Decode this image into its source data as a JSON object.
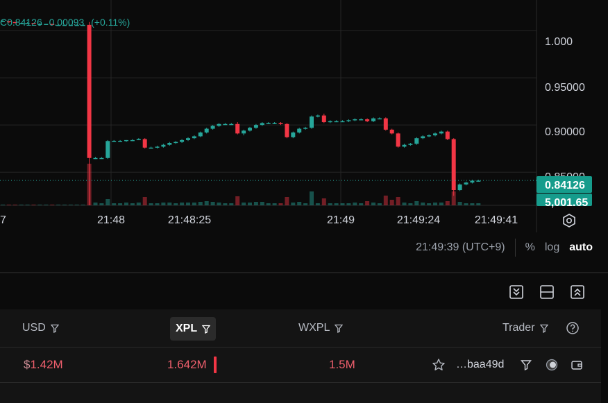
{
  "ohlc": {
    "prefix": "C",
    "close": "0.84126",
    "change": "0.00093",
    "change_pct": "(+0.11%)"
  },
  "price_axis": {
    "ticks": [
      "1.000",
      "0.95000",
      "0.90000",
      "0.85000"
    ],
    "last_price": "0.84126",
    "volume": "5,001.65"
  },
  "time_axis": {
    "ticks": [
      "7",
      "21:48",
      "21:48:25",
      "21:49",
      "21:49:24",
      "21:49:41"
    ]
  },
  "toolbar": {
    "time": "21:49:39 (UTC+9)",
    "percent": "%",
    "log": "log",
    "auto": "auto"
  },
  "colors": {
    "up": "#26a69a",
    "down": "#f23645",
    "grid": "#262626",
    "label_up": "#169c8c"
  },
  "chart_data": {
    "type": "candlestick",
    "title": "",
    "y_range": [
      0.845,
      1.025
    ],
    "last_price": 0.84126,
    "candles": [
      [
        1.01,
        1.011,
        1.009,
        1.01
      ],
      [
        1.01,
        1.01,
        1.008,
        1.009
      ],
      [
        1.009,
        1.009,
        1.008,
        1.008
      ],
      [
        1.008,
        1.008,
        1.008,
        1.008
      ],
      [
        1.008,
        1.009,
        1.007,
        1.008
      ],
      [
        1.008,
        1.008,
        1.007,
        1.007
      ],
      [
        1.007,
        1.008,
        1.007,
        1.007
      ],
      [
        1.007,
        1.007,
        1.007,
        1.007
      ],
      [
        1.007,
        1.007,
        1.006,
        1.006
      ],
      [
        1.006,
        1.007,
        1.006,
        1.006
      ],
      [
        1.006,
        1.006,
        1.006,
        1.006
      ],
      [
        1.006,
        1.006,
        1.006,
        1.006
      ],
      [
        1.006,
        1.006,
        1.006,
        1.006
      ],
      [
        1.006,
        1.006,
        1.006,
        1.006
      ],
      [
        1.006,
        1.009,
        0.8,
        0.865
      ],
      [
        0.865,
        0.866,
        0.864,
        0.865
      ],
      [
        0.865,
        0.866,
        0.864,
        0.865
      ],
      [
        0.865,
        0.884,
        0.864,
        0.883
      ],
      [
        0.883,
        0.884,
        0.882,
        0.883
      ],
      [
        0.883,
        0.884,
        0.882,
        0.883
      ],
      [
        0.883,
        0.884,
        0.882,
        0.884
      ],
      [
        0.884,
        0.885,
        0.883,
        0.884
      ],
      [
        0.884,
        0.886,
        0.884,
        0.885
      ],
      [
        0.885,
        0.886,
        0.875,
        0.876
      ],
      [
        0.876,
        0.877,
        0.875,
        0.876
      ],
      [
        0.876,
        0.878,
        0.875,
        0.877
      ],
      [
        0.877,
        0.88,
        0.876,
        0.879
      ],
      [
        0.879,
        0.882,
        0.878,
        0.881
      ],
      [
        0.881,
        0.883,
        0.88,
        0.882
      ],
      [
        0.882,
        0.885,
        0.881,
        0.884
      ],
      [
        0.884,
        0.887,
        0.883,
        0.886
      ],
      [
        0.886,
        0.889,
        0.885,
        0.888
      ],
      [
        0.888,
        0.893,
        0.887,
        0.892
      ],
      [
        0.892,
        0.897,
        0.891,
        0.896
      ],
      [
        0.896,
        0.9,
        0.895,
        0.899
      ],
      [
        0.899,
        0.902,
        0.898,
        0.901
      ],
      [
        0.901,
        0.902,
        0.9,
        0.901
      ],
      [
        0.901,
        0.902,
        0.9,
        0.901
      ],
      [
        0.901,
        0.903,
        0.89,
        0.891
      ],
      [
        0.891,
        0.895,
        0.889,
        0.894
      ],
      [
        0.894,
        0.898,
        0.893,
        0.897
      ],
      [
        0.897,
        0.901,
        0.896,
        0.9
      ],
      [
        0.9,
        0.903,
        0.899,
        0.902
      ],
      [
        0.902,
        0.903,
        0.901,
        0.902
      ],
      [
        0.902,
        0.903,
        0.901,
        0.902
      ],
      [
        0.902,
        0.903,
        0.9,
        0.901
      ],
      [
        0.901,
        0.902,
        0.886,
        0.887
      ],
      [
        0.887,
        0.893,
        0.886,
        0.892
      ],
      [
        0.892,
        0.897,
        0.891,
        0.896
      ],
      [
        0.896,
        0.898,
        0.895,
        0.897
      ],
      [
        0.897,
        0.91,
        0.896,
        0.909
      ],
      [
        0.909,
        0.911,
        0.908,
        0.91
      ],
      [
        0.91,
        0.912,
        0.902,
        0.903
      ],
      [
        0.903,
        0.905,
        0.902,
        0.904
      ],
      [
        0.904,
        0.905,
        0.903,
        0.904
      ],
      [
        0.904,
        0.905,
        0.903,
        0.904
      ],
      [
        0.904,
        0.906,
        0.903,
        0.905
      ],
      [
        0.905,
        0.907,
        0.904,
        0.906
      ],
      [
        0.906,
        0.907,
        0.905,
        0.906
      ],
      [
        0.906,
        0.907,
        0.903,
        0.904
      ],
      [
        0.904,
        0.908,
        0.903,
        0.907
      ],
      [
        0.907,
        0.908,
        0.906,
        0.907
      ],
      [
        0.907,
        0.908,
        0.894,
        0.895
      ],
      [
        0.895,
        0.896,
        0.89,
        0.891
      ],
      [
        0.891,
        0.892,
        0.876,
        0.877
      ],
      [
        0.877,
        0.88,
        0.876,
        0.879
      ],
      [
        0.879,
        0.881,
        0.878,
        0.88
      ],
      [
        0.88,
        0.887,
        0.879,
        0.886
      ],
      [
        0.886,
        0.889,
        0.885,
        0.888
      ],
      [
        0.888,
        0.89,
        0.887,
        0.889
      ],
      [
        0.889,
        0.892,
        0.888,
        0.891
      ],
      [
        0.891,
        0.894,
        0.89,
        0.893
      ],
      [
        0.893,
        0.894,
        0.884,
        0.885
      ],
      [
        0.885,
        0.886,
        0.825,
        0.831
      ],
      [
        0.831,
        0.838,
        0.83,
        0.837
      ],
      [
        0.837,
        0.84,
        0.836,
        0.839
      ],
      [
        0.839,
        0.842,
        0.838,
        0.841
      ],
      [
        0.841,
        0.842,
        0.84,
        0.841
      ]
    ],
    "volumes": [
      1,
      1,
      1,
      1,
      1,
      1,
      1,
      1,
      1,
      1,
      1,
      1,
      1,
      1,
      60,
      4,
      3,
      9,
      3,
      3,
      4,
      3,
      4,
      12,
      3,
      3,
      4,
      4,
      3,
      4,
      4,
      4,
      5,
      6,
      5,
      4,
      3,
      3,
      13,
      4,
      4,
      5,
      5,
      3,
      3,
      3,
      12,
      4,
      5,
      3,
      20,
      3,
      10,
      3,
      3,
      3,
      3,
      4,
      3,
      6,
      4,
      3,
      14,
      8,
      12,
      4,
      3,
      6,
      4,
      3,
      4,
      4,
      6,
      20,
      5,
      3,
      3,
      3
    ]
  },
  "panel_icons": [
    "collapse-down-icon",
    "split-view-icon",
    "collapse-up-icon"
  ],
  "table": {
    "headers": {
      "usd": "USD",
      "xpl": "XPL",
      "wxpl": "WXPL",
      "trader": "Trader"
    },
    "row": {
      "usd_sign": "$",
      "usd": "1.42M",
      "xpl": "1.642M",
      "wxpl": "1.5M",
      "trader": "…baa49d"
    }
  }
}
